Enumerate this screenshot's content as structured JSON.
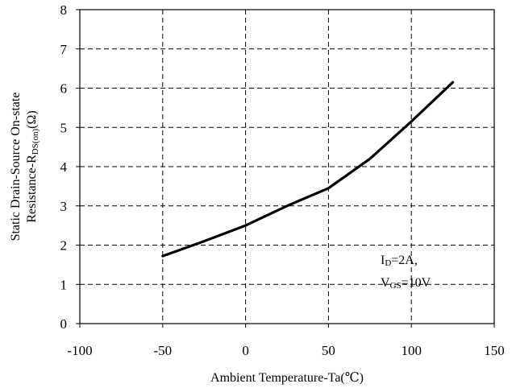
{
  "chart_data": {
    "type": "line",
    "title": "",
    "xlabel": "Ambient Temperature-Ta(℃)",
    "ylabel_lines": [
      "Static Drain-Source On-state",
      "Resistance-R",
      "DS(on)",
      "(Ω)"
    ],
    "xlim": [
      -100,
      150
    ],
    "ylim": [
      0,
      8
    ],
    "xticks": [
      -100,
      -50,
      0,
      50,
      100,
      150
    ],
    "yticks": [
      0,
      1,
      2,
      3,
      4,
      5,
      6,
      7,
      8
    ],
    "grid": true,
    "grid_style": "dashed",
    "series": [
      {
        "color": "#000000",
        "x": [
          -50,
          -25,
          0,
          25,
          50,
          75,
          100,
          125
        ],
        "y": [
          1.72,
          2.1,
          2.5,
          3.0,
          3.45,
          4.2,
          5.15,
          6.15
        ]
      }
    ],
    "annotation": {
      "line1_main": "I",
      "line1_sub": "D",
      "line1_rest": "=2A,",
      "line2_main": "V",
      "line2_sub": "GS",
      "line2_rest": "=10V"
    }
  }
}
